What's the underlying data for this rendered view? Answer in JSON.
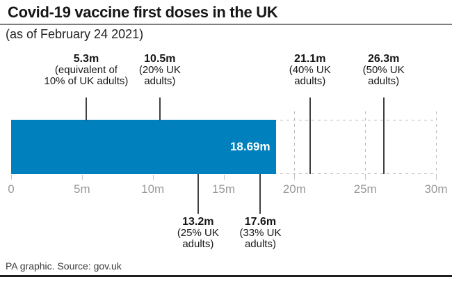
{
  "header": {
    "title": "Covid-19 vaccine first doses in the UK",
    "subtitle": "(as of February 24 2021)"
  },
  "footer": {
    "credit": "PA graphic. Source: gov.uk"
  },
  "colors": {
    "bar": "#0081bd",
    "marker": "#3f3f3f",
    "dash": "#b9b9b9",
    "axis_text": "#999999",
    "text": "#161616",
    "bar_label": "#ffffff",
    "rule": "#7d7d7d",
    "bottom_rule": "#1e1e1e",
    "footer_text": "#3a3a3a"
  },
  "chart_data": {
    "type": "bar",
    "orientation": "horizontal",
    "title": "Covid-19 vaccine first doses in the UK",
    "subtitle": "(as of February 24 2021)",
    "source": "PA graphic. Source: gov.uk",
    "xlim": [
      0,
      30
    ],
    "bar": {
      "value": 18.69,
      "label": "18.69m"
    },
    "axis": {
      "ticks": [
        {
          "value": 0,
          "label": "0"
        },
        {
          "value": 5,
          "label": "5m"
        },
        {
          "value": 10,
          "label": "10m"
        },
        {
          "value": 15,
          "label": "15m"
        },
        {
          "value": 20,
          "label": "20m"
        },
        {
          "value": 25,
          "label": "25m"
        },
        {
          "value": 30,
          "label": "30m"
        }
      ]
    },
    "gridlines": [
      {
        "value": 20
      },
      {
        "value": 25
      },
      {
        "value": 30
      }
    ],
    "annotations": [
      {
        "value": 5.3,
        "label": "5.3m",
        "sub1": "(equivalent of",
        "sub2": "10% of UK adults)",
        "position": "above"
      },
      {
        "value": 10.5,
        "label": "10.5m",
        "sub1": "(20% UK",
        "sub2": "adults)",
        "position": "above"
      },
      {
        "value": 21.1,
        "label": "21.1m",
        "sub1": "(40% UK",
        "sub2": "adults)",
        "position": "above"
      },
      {
        "value": 26.3,
        "label": "26.3m",
        "sub1": "(50% UK",
        "sub2": "adults)",
        "position": "above"
      },
      {
        "value": 13.2,
        "label": "13.2m",
        "sub1": "(25% UK",
        "sub2": "adults)",
        "position": "below"
      },
      {
        "value": 17.6,
        "label": "17.6m",
        "sub1": "(33% UK",
        "sub2": "adults)",
        "position": "below"
      }
    ]
  }
}
